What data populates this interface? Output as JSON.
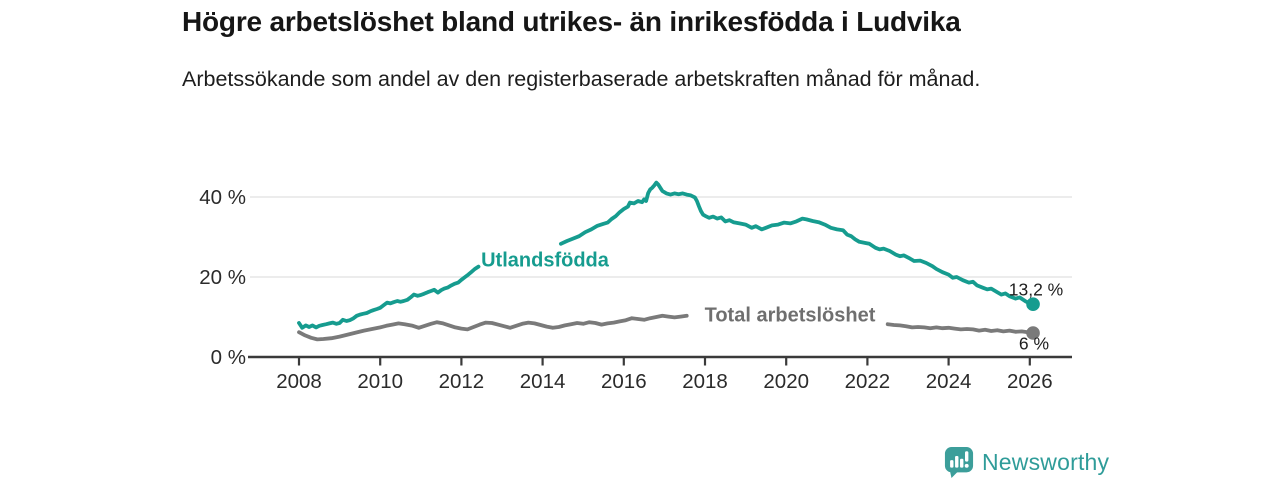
{
  "header": {
    "title": "Högre arbetslöshet bland utrikes- än inrikesfödda i Ludvika",
    "subtitle": "Arbetssökande som andel av den registerbaserade arbetskraften månad för månad."
  },
  "branding": {
    "name": "Newsworthy",
    "icon": "bar-chart-speech-bubble-icon",
    "color": "#2F9C99"
  },
  "chart_data": {
    "type": "line",
    "unit": "%",
    "title": "Högre arbetslöshet bland utrikes- än inrikesfödda i Ludvika",
    "xlabel": "",
    "ylabel": "",
    "xlim": [
      2006.8,
      2027.0
    ],
    "ylim": [
      0,
      47
    ],
    "grid": "horizontal",
    "legend_position": "inline-labels",
    "x_ticks": [
      {
        "year": 2008,
        "label": "2008"
      },
      {
        "year": 2010,
        "label": "2010"
      },
      {
        "year": 2012,
        "label": "2012"
      },
      {
        "year": 2014,
        "label": "2014"
      },
      {
        "year": 2016,
        "label": "2016"
      },
      {
        "year": 2018,
        "label": "2018"
      },
      {
        "year": 2020,
        "label": "2020"
      },
      {
        "year": 2022,
        "label": "2022"
      },
      {
        "year": 2024,
        "label": "2024"
      },
      {
        "year": 2026,
        "label": "2026"
      }
    ],
    "y_ticks": [
      {
        "value": 0,
        "label": "0 %"
      },
      {
        "value": 20,
        "label": "20 %"
      },
      {
        "value": 40,
        "label": "40 %"
      }
    ],
    "series": [
      {
        "name": "Utlandsfödda",
        "color": "#169C8F",
        "end_label": "13,2 %",
        "end_value": 13.2,
        "segments": [
          [
            [
              2008.0,
              8.5
            ],
            [
              2008.08,
              7.3
            ],
            [
              2008.17,
              7.9
            ],
            [
              2008.25,
              7.5
            ],
            [
              2008.33,
              7.9
            ],
            [
              2008.42,
              7.4
            ],
            [
              2008.5,
              7.8
            ],
            [
              2008.58,
              8.0
            ],
            [
              2008.67,
              8.2
            ],
            [
              2008.75,
              8.4
            ],
            [
              2008.83,
              8.6
            ],
            [
              2008.92,
              8.3
            ],
            [
              2009.0,
              8.5
            ],
            [
              2009.08,
              9.3
            ],
            [
              2009.17,
              9.0
            ],
            [
              2009.25,
              9.2
            ],
            [
              2009.33,
              9.6
            ],
            [
              2009.42,
              10.3
            ],
            [
              2009.5,
              10.6
            ],
            [
              2009.58,
              10.8
            ],
            [
              2009.67,
              11.0
            ],
            [
              2009.75,
              11.4
            ],
            [
              2009.83,
              11.7
            ],
            [
              2009.92,
              12.0
            ],
            [
              2010.0,
              12.3
            ],
            [
              2010.08,
              12.9
            ],
            [
              2010.17,
              13.6
            ],
            [
              2010.25,
              13.4
            ],
            [
              2010.33,
              13.7
            ],
            [
              2010.42,
              14.0
            ],
            [
              2010.5,
              13.8
            ],
            [
              2010.58,
              14.0
            ],
            [
              2010.67,
              14.3
            ],
            [
              2010.75,
              14.9
            ],
            [
              2010.83,
              15.6
            ],
            [
              2010.92,
              15.3
            ],
            [
              2011.0,
              15.5
            ],
            [
              2011.08,
              15.8
            ],
            [
              2011.17,
              16.2
            ],
            [
              2011.25,
              16.5
            ],
            [
              2011.33,
              16.8
            ],
            [
              2011.42,
              16.1
            ],
            [
              2011.5,
              16.7
            ],
            [
              2011.58,
              17.1
            ],
            [
              2011.67,
              17.4
            ],
            [
              2011.75,
              17.9
            ],
            [
              2011.83,
              18.3
            ],
            [
              2011.92,
              18.6
            ],
            [
              2012.0,
              19.3
            ],
            [
              2012.08,
              19.9
            ],
            [
              2012.17,
              20.6
            ],
            [
              2012.25,
              21.3
            ],
            [
              2012.33,
              22.0
            ],
            [
              2012.42,
              22.6
            ]
          ],
          [
            [
              2014.45,
              28.3
            ],
            [
              2014.6,
              29.0
            ],
            [
              2014.75,
              29.6
            ],
            [
              2014.9,
              30.2
            ],
            [
              2015.05,
              31.2
            ],
            [
              2015.2,
              31.9
            ],
            [
              2015.35,
              32.8
            ],
            [
              2015.5,
              33.3
            ],
            [
              2015.6,
              33.6
            ],
            [
              2015.7,
              34.5
            ],
            [
              2015.8,
              35.2
            ],
            [
              2015.9,
              36.2
            ],
            [
              2016.0,
              37.0
            ],
            [
              2016.1,
              37.6
            ],
            [
              2016.15,
              38.6
            ],
            [
              2016.25,
              38.4
            ],
            [
              2016.35,
              39.0
            ],
            [
              2016.45,
              38.7
            ],
            [
              2016.5,
              39.4
            ],
            [
              2016.55,
              39.0
            ],
            [
              2016.6,
              41.0
            ],
            [
              2016.65,
              41.9
            ],
            [
              2016.7,
              42.3
            ],
            [
              2016.75,
              42.9
            ],
            [
              2016.8,
              43.6
            ],
            [
              2016.85,
              43.1
            ],
            [
              2016.9,
              42.3
            ],
            [
              2016.95,
              41.5
            ],
            [
              2017.05,
              40.9
            ],
            [
              2017.15,
              40.6
            ],
            [
              2017.25,
              40.9
            ],
            [
              2017.35,
              40.7
            ],
            [
              2017.45,
              40.9
            ],
            [
              2017.55,
              40.6
            ],
            [
              2017.65,
              40.4
            ],
            [
              2017.75,
              39.9
            ],
            [
              2017.8,
              39.0
            ],
            [
              2017.85,
              37.7
            ],
            [
              2017.9,
              36.5
            ],
            [
              2017.95,
              35.6
            ],
            [
              2018.0,
              35.3
            ],
            [
              2018.1,
              34.8
            ],
            [
              2018.2,
              35.1
            ],
            [
              2018.3,
              34.6
            ],
            [
              2018.4,
              34.9
            ],
            [
              2018.5,
              33.9
            ],
            [
              2018.6,
              34.2
            ],
            [
              2018.7,
              33.7
            ],
            [
              2018.85,
              33.4
            ],
            [
              2019.0,
              33.1
            ],
            [
              2019.15,
              32.3
            ],
            [
              2019.25,
              32.7
            ],
            [
              2019.4,
              31.9
            ],
            [
              2019.5,
              32.3
            ],
            [
              2019.65,
              32.9
            ],
            [
              2019.8,
              33.1
            ],
            [
              2019.95,
              33.6
            ],
            [
              2020.1,
              33.4
            ],
            [
              2020.25,
              33.9
            ],
            [
              2020.4,
              34.6
            ],
            [
              2020.5,
              34.4
            ],
            [
              2020.65,
              34.0
            ],
            [
              2020.8,
              33.7
            ],
            [
              2020.95,
              33.1
            ],
            [
              2021.1,
              32.3
            ],
            [
              2021.25,
              31.9
            ],
            [
              2021.4,
              31.7
            ],
            [
              2021.5,
              30.6
            ],
            [
              2021.6,
              30.2
            ],
            [
              2021.7,
              29.4
            ],
            [
              2021.8,
              28.8
            ],
            [
              2021.95,
              28.5
            ],
            [
              2022.05,
              28.3
            ],
            [
              2022.2,
              27.3
            ],
            [
              2022.3,
              26.9
            ],
            [
              2022.4,
              27.1
            ],
            [
              2022.55,
              26.5
            ],
            [
              2022.7,
              25.6
            ],
            [
              2022.8,
              25.2
            ],
            [
              2022.9,
              25.4
            ],
            [
              2023.05,
              24.6
            ],
            [
              2023.15,
              24.0
            ],
            [
              2023.3,
              24.1
            ],
            [
              2023.45,
              23.5
            ],
            [
              2023.6,
              22.7
            ],
            [
              2023.7,
              22.0
            ],
            [
              2023.85,
              21.2
            ],
            [
              2024.0,
              20.6
            ],
            [
              2024.1,
              19.8
            ],
            [
              2024.2,
              20.0
            ],
            [
              2024.35,
              19.2
            ],
            [
              2024.5,
              18.6
            ],
            [
              2024.6,
              18.8
            ],
            [
              2024.7,
              17.9
            ],
            [
              2024.85,
              17.3
            ],
            [
              2024.95,
              16.9
            ],
            [
              2025.05,
              17.1
            ],
            [
              2025.2,
              16.2
            ],
            [
              2025.3,
              15.6
            ],
            [
              2025.4,
              15.9
            ],
            [
              2025.5,
              15.2
            ],
            [
              2025.65,
              14.6
            ],
            [
              2025.75,
              14.9
            ],
            [
              2025.9,
              13.9
            ],
            [
              2026.0,
              13.4
            ],
            [
              2026.08,
              13.2
            ]
          ]
        ]
      },
      {
        "name": "Total arbetslöshet",
        "color": "#7A7A7A",
        "end_label": "6 %",
        "end_value": 6,
        "segments": [
          [
            [
              2008.0,
              6.2
            ],
            [
              2008.15,
              5.4
            ],
            [
              2008.3,
              4.8
            ],
            [
              2008.45,
              4.4
            ],
            [
              2008.6,
              4.5
            ],
            [
              2008.8,
              4.7
            ],
            [
              2009.0,
              5.1
            ],
            [
              2009.2,
              5.6
            ],
            [
              2009.4,
              6.1
            ],
            [
              2009.6,
              6.6
            ],
            [
              2009.8,
              7.0
            ],
            [
              2010.0,
              7.4
            ],
            [
              2010.15,
              7.8
            ],
            [
              2010.3,
              8.1
            ],
            [
              2010.45,
              8.4
            ],
            [
              2010.6,
              8.2
            ],
            [
              2010.8,
              7.8
            ],
            [
              2010.95,
              7.3
            ],
            [
              2011.1,
              7.8
            ],
            [
              2011.25,
              8.3
            ],
            [
              2011.4,
              8.7
            ],
            [
              2011.55,
              8.4
            ],
            [
              2011.7,
              7.9
            ],
            [
              2011.85,
              7.4
            ],
            [
              2012.0,
              7.1
            ],
            [
              2012.15,
              6.9
            ],
            [
              2012.3,
              7.5
            ],
            [
              2012.45,
              8.1
            ],
            [
              2012.6,
              8.6
            ],
            [
              2012.75,
              8.5
            ],
            [
              2012.9,
              8.1
            ],
            [
              2013.05,
              7.7
            ],
            [
              2013.2,
              7.3
            ],
            [
              2013.35,
              7.8
            ],
            [
              2013.5,
              8.3
            ],
            [
              2013.65,
              8.6
            ],
            [
              2013.8,
              8.4
            ],
            [
              2013.95,
              8.0
            ],
            [
              2014.1,
              7.6
            ],
            [
              2014.25,
              7.3
            ],
            [
              2014.4,
              7.5
            ],
            [
              2014.55,
              7.9
            ],
            [
              2014.7,
              8.2
            ],
            [
              2014.85,
              8.5
            ],
            [
              2015.0,
              8.3
            ],
            [
              2015.15,
              8.7
            ],
            [
              2015.3,
              8.5
            ],
            [
              2015.45,
              8.1
            ],
            [
              2015.6,
              8.4
            ],
            [
              2015.75,
              8.6
            ],
            [
              2015.9,
              8.9
            ],
            [
              2016.05,
              9.2
            ],
            [
              2016.2,
              9.7
            ],
            [
              2016.35,
              9.5
            ],
            [
              2016.5,
              9.3
            ],
            [
              2016.65,
              9.7
            ],
            [
              2016.8,
              10.0
            ],
            [
              2016.95,
              10.3
            ],
            [
              2017.1,
              10.1
            ],
            [
              2017.25,
              9.9
            ],
            [
              2017.4,
              10.1
            ],
            [
              2017.55,
              10.3
            ]
          ],
          [
            [
              2022.5,
              8.2
            ],
            [
              2022.65,
              8.0
            ],
            [
              2022.8,
              7.9
            ],
            [
              2022.95,
              7.7
            ],
            [
              2023.1,
              7.4
            ],
            [
              2023.25,
              7.5
            ],
            [
              2023.4,
              7.4
            ],
            [
              2023.55,
              7.2
            ],
            [
              2023.7,
              7.4
            ],
            [
              2023.85,
              7.2
            ],
            [
              2024.0,
              7.3
            ],
            [
              2024.15,
              7.1
            ],
            [
              2024.3,
              6.9
            ],
            [
              2024.45,
              7.0
            ],
            [
              2024.6,
              6.9
            ],
            [
              2024.75,
              6.6
            ],
            [
              2024.9,
              6.8
            ],
            [
              2025.05,
              6.5
            ],
            [
              2025.2,
              6.7
            ],
            [
              2025.35,
              6.4
            ],
            [
              2025.5,
              6.6
            ],
            [
              2025.65,
              6.3
            ],
            [
              2025.8,
              6.4
            ],
            [
              2025.95,
              6.2
            ],
            [
              2026.08,
              6.0
            ]
          ]
        ]
      }
    ],
    "colors": {
      "axis": "#3A3A3A",
      "gridline": "#E0E0E0",
      "tick_text": "#2B2B2B"
    }
  }
}
